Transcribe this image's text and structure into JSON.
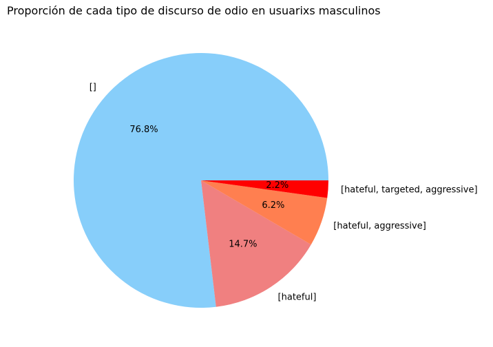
{
  "chart_data": {
    "type": "pie",
    "title": "Proporción de cada tipo de discurso de odio en usuarixs masculinos",
    "slices": [
      {
        "label": "[hateful, targeted, aggressive]",
        "value": 2.2,
        "pct_label": "2.2%",
        "color": "#ff0000"
      },
      {
        "label": "[]",
        "value": 76.8,
        "pct_label": "76.8%",
        "color": "#87cefa"
      },
      {
        "label": "[hateful]",
        "value": 14.7,
        "pct_label": "14.7%",
        "color": "#f08080"
      },
      {
        "label": "[hateful, aggressive]",
        "value": 6.2,
        "pct_label": "6.2%",
        "color": "#ff7f50"
      }
    ],
    "start_angle": "0° (3 o'clock), counterclockwise"
  }
}
